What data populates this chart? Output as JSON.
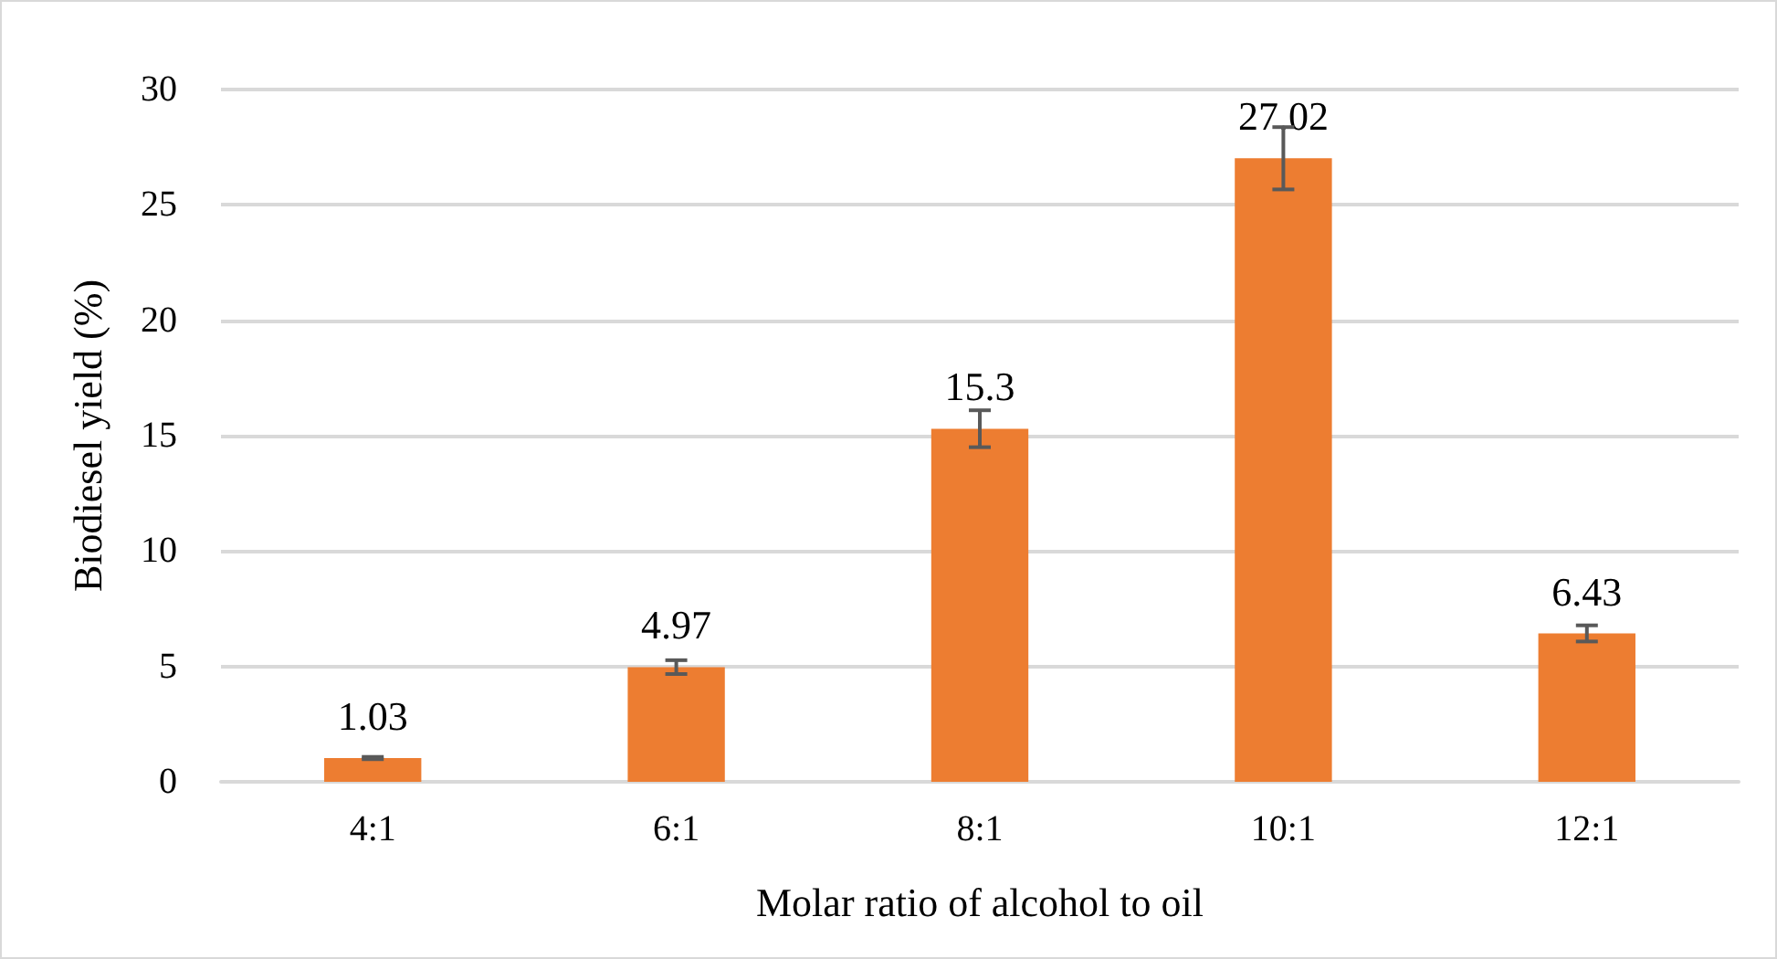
{
  "chart_data": {
    "type": "bar",
    "xlabel": "Molar ratio of alcohol to oil",
    "ylabel": "Biodiesel yield (%)",
    "categories": [
      "4:1",
      "6:1",
      "8:1",
      "10:1",
      "12:1"
    ],
    "series": [
      {
        "color": "#ed7d31",
        "values": [
          1.03,
          4.97,
          15.3,
          27.02,
          6.43
        ],
        "errors": [
          0.05,
          0.3,
          0.8,
          1.35,
          0.35
        ]
      }
    ],
    "ylim": [
      0,
      30
    ],
    "yticks": [
      0,
      5,
      10,
      15,
      20,
      25,
      30
    ],
    "grid": "y",
    "data_labels": true
  }
}
